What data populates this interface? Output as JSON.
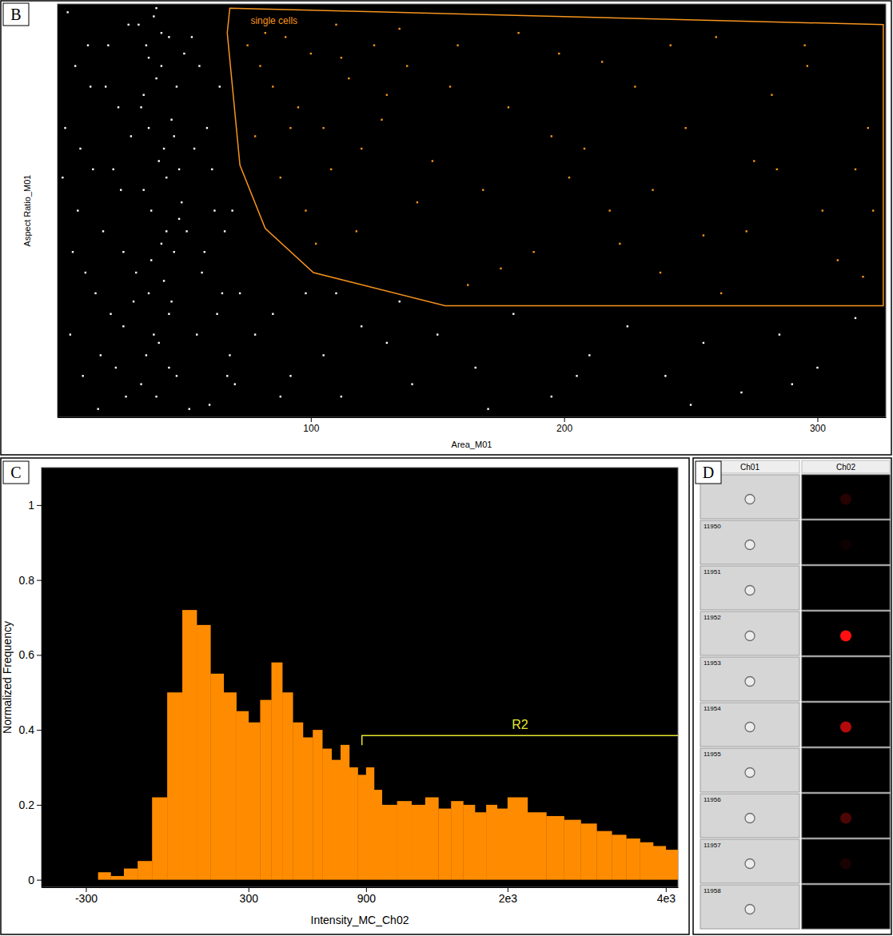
{
  "chart_data": [
    {
      "type": "scatter",
      "panel": "B",
      "x_label": "Area_M01",
      "y_label": "Aspect Ratio_M01",
      "color": "#ffffff",
      "tick_labels": "x",
      "xlim": [
        0,
        327
      ],
      "ylim": [
        0,
        1
      ],
      "xticks": [
        100,
        200,
        300
      ],
      "x": [
        32,
        35,
        38,
        41,
        44,
        47,
        50,
        33,
        36,
        39,
        42,
        45,
        48,
        34,
        37,
        40,
        43,
        46,
        49,
        31,
        36,
        41,
        44,
        38,
        35,
        42,
        47,
        39,
        45,
        33,
        40,
        37,
        43,
        46,
        34,
        48,
        41,
        36,
        44,
        39,
        3,
        8,
        12,
        15,
        19,
        22,
        26,
        28,
        53,
        56,
        59,
        62,
        65,
        68,
        5,
        10,
        14,
        18,
        24,
        27,
        55,
        58,
        61,
        64,
        67,
        70,
        7,
        11,
        17,
        21,
        25,
        54,
        60,
        66,
        4,
        9,
        16,
        20,
        23,
        57,
        63,
        69,
        6,
        13,
        29,
        52,
        30,
        51,
        2,
        26,
        72,
        78,
        85,
        92,
        98,
        105,
        112,
        120,
        130,
        140,
        150,
        165,
        180,
        195,
        210,
        225,
        240,
        255,
        270,
        285,
        300,
        315,
        322,
        88,
        110,
        135,
        170,
        205,
        250,
        290,
        75,
        80,
        85,
        90,
        95,
        100,
        105,
        110,
        115,
        120,
        125,
        130,
        78,
        88,
        98,
        108,
        118,
        128,
        138,
        148,
        158,
        168,
        178,
        188,
        198,
        208,
        218,
        228,
        238,
        248,
        260,
        272,
        284,
        296,
        308,
        320,
        82,
        92,
        102,
        112,
        142,
        162,
        182,
        202,
        222,
        242,
        262,
        282,
        302,
        318,
        135,
        155,
        175,
        195,
        215,
        235,
        255,
        275,
        295,
        315
      ],
      "values": [
        0.95,
        0.9,
        0.97,
        0.85,
        0.92,
        0.8,
        0.88,
        0.75,
        0.7,
        0.82,
        0.65,
        0.72,
        0.6,
        0.55,
        0.5,
        0.62,
        0.45,
        0.4,
        0.52,
        0.35,
        0.3,
        0.42,
        0.25,
        0.2,
        0.15,
        0.33,
        0.1,
        0.05,
        0.28,
        0.08,
        0.18,
        0.38,
        0.58,
        0.68,
        0.78,
        0.48,
        0.93,
        0.87,
        0.12,
        0.99,
        0.7,
        0.5,
        0.9,
        0.3,
        0.8,
        0.6,
        0.4,
        0.95,
        0.92,
        0.85,
        0.7,
        0.5,
        0.3,
        0.15,
        0.2,
        0.1,
        0.6,
        0.45,
        0.75,
        0.05,
        0.2,
        0.4,
        0.6,
        0.8,
        0.1,
        0.08,
        0.85,
        0.35,
        0.15,
        0.25,
        0.55,
        0.65,
        0.03,
        0.45,
        0.98,
        0.65,
        0.02,
        0.9,
        0.12,
        0.35,
        0.25,
        0.5,
        0.4,
        0.8,
        0.68,
        0.02,
        0.28,
        0.45,
        0.58,
        0.22,
        0.3,
        0.2,
        0.25,
        0.1,
        0.3,
        0.15,
        0.05,
        0.22,
        0.18,
        0.08,
        0.2,
        0.12,
        0.25,
        0.05,
        0.15,
        0.22,
        0.1,
        0.18,
        0.06,
        0.2,
        0.12,
        0.24,
        0.5,
        0.05,
        0.3,
        0.28,
        0.02,
        0.1,
        0.03,
        0.08,
        0.9,
        0.85,
        0.8,
        0.92,
        0.75,
        0.88,
        0.7,
        0.95,
        0.82,
        0.65,
        0.9,
        0.78,
        0.68,
        0.58,
        0.5,
        0.6,
        0.45,
        0.72,
        0.85,
        0.62,
        0.9,
        0.55,
        0.75,
        0.4,
        0.88,
        0.65,
        0.5,
        0.8,
        0.35,
        0.7,
        0.92,
        0.45,
        0.6,
        0.85,
        0.38,
        0.7,
        0.93,
        0.7,
        0.42,
        0.87,
        0.52,
        0.32,
        0.93,
        0.58,
        0.42,
        0.9,
        0.3,
        0.78,
        0.5,
        0.34,
        0.94,
        0.8,
        0.36,
        0.68,
        0.86,
        0.55,
        0.44,
        0.62,
        0.9,
        0.6
      ],
      "region": {
        "label": "single cells",
        "color": "#f7941d",
        "x": [
          68,
          326,
          326,
          153,
          101,
          82,
          72,
          67
        ],
        "y": [
          0.99,
          0.95,
          0.27,
          0.27,
          0.35,
          0.457,
          0.61,
          0.93
        ]
      }
    },
    {
      "type": "histogram",
      "panel": "C",
      "x_label": "Intensity_MC_Ch02",
      "y_label": "Normalized Frequency",
      "color": "#ff8c00",
      "log": "x",
      "xlim": [
        -500,
        4200
      ],
      "ylim": [
        -0.02,
        1.1
      ],
      "xticks": [
        -300,
        300,
        900,
        {
          "value": 2000,
          "label": "2e3"
        },
        {
          "value": 4000,
          "label": "4e3"
        }
      ],
      "yticks": [
        0,
        0.2,
        0.4,
        0.6,
        0.8,
        1
      ],
      "bins": [
        -500,
        -450,
        -400,
        -350,
        -300,
        -250,
        -200,
        -150,
        -100,
        -50,
        0,
        50,
        100,
        150,
        200,
        250,
        300,
        350,
        400,
        450,
        500,
        550,
        600,
        650,
        700,
        750,
        800,
        850,
        900,
        950,
        1000,
        1100,
        1200,
        1300,
        1400,
        1500,
        1600,
        1700,
        1800,
        1900,
        2000,
        2200,
        2400,
        2600,
        2800,
        3000,
        3200,
        3400,
        3600,
        3800,
        4000,
        4200
      ],
      "values": [
        0,
        0,
        0,
        0,
        0,
        0.02,
        0.01,
        0.03,
        0.05,
        0.22,
        0.5,
        0.72,
        0.68,
        0.55,
        0.5,
        0.45,
        0.42,
        0.48,
        0.58,
        0.5,
        0.42,
        0.38,
        0.4,
        0.35,
        0.32,
        0.36,
        0.3,
        0.28,
        0.3,
        0.24,
        0.2,
        0.21,
        0.2,
        0.22,
        0.19,
        0.21,
        0.2,
        0.18,
        0.2,
        0.19,
        0.22,
        0.18,
        0.17,
        0.16,
        0.15,
        0.13,
        0.12,
        0.11,
        0.1,
        0.09,
        0.08
      ],
      "region": {
        "label": "R2",
        "color": "#e5e82a",
        "x": [
          875,
          4200
        ],
        "y": 0.385
      }
    }
  ],
  "gallery": {
    "panel": "D",
    "columns": [
      "Ch01",
      "Ch02"
    ],
    "rows": [
      {
        "signal": 0.15
      },
      {
        "id": 11950,
        "signal": 0.05
      },
      {
        "id": 11951,
        "signal": 0
      },
      {
        "id": 11952,
        "signal": 1
      },
      {
        "id": 11953,
        "signal": 0
      },
      {
        "id": 11954,
        "signal": 0.7
      },
      {
        "id": 11955,
        "signal": 0
      },
      {
        "id": 11956,
        "signal": 0.3
      },
      {
        "id": 11957,
        "signal": 0.1
      },
      {
        "id": 11958,
        "signal": 0
      }
    ]
  }
}
